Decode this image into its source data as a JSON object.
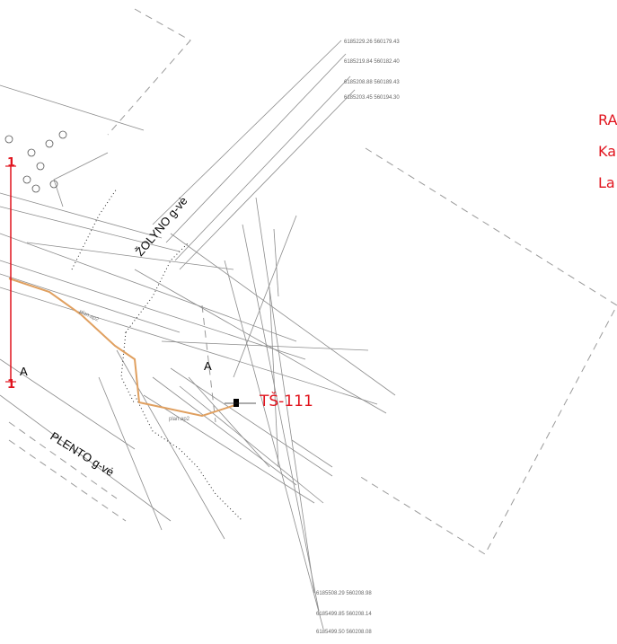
{
  "map": {
    "streets": {
      "zolyno": "ŽOLYNO g-vė",
      "plento": "PLENTO g-vė"
    },
    "substation_label": "TŠ-111",
    "section_mark": "A",
    "section_line_label_top": "1",
    "section_line_label_bottom": "1",
    "section_line_label_a": "A",
    "right_texts": [
      "RA",
      "Ka",
      "La"
    ],
    "coords_top": [
      "6185229.26 560179.43",
      "6185219.84 560182.40",
      "6185208.88 560189.43",
      "6185203.45 560194.30"
    ],
    "coords_bottom": [
      "6185508.29 560208.98",
      "6185499.85 560208.14",
      "6185499.50 560208.08"
    ],
    "cable_labels": [
      "plan.ap2",
      "plan.ap2"
    ],
    "colors": {
      "cable": "#e0a060",
      "label_red": "#e1141e",
      "lines": "#8c8c8c",
      "dashed": "#9a9a9a"
    }
  }
}
